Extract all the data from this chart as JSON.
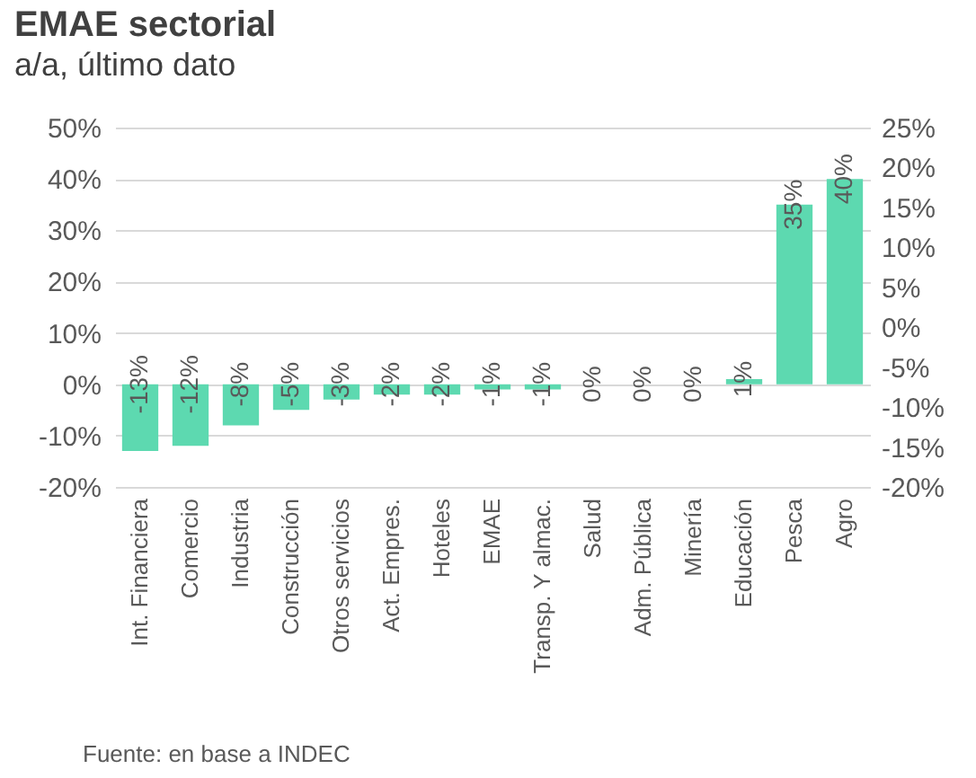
{
  "chart_data": {
    "type": "bar",
    "title": "EMAE sectorial",
    "subtitle": "a/a, último dato",
    "categories": [
      "Int. Financiera",
      "Comercio",
      "Industria",
      "Construcción",
      "Otros servicios",
      "Act. Empres.",
      "Hoteles",
      "EMAE",
      "Transp. Y almac.",
      "Salud",
      "Adm. Pública",
      "Minería",
      "Educación",
      "Pesca",
      "Agro"
    ],
    "values": [
      -13,
      -12,
      -8,
      -5,
      -3,
      -2,
      -2,
      -1,
      -1,
      0,
      0,
      0,
      1,
      35,
      40
    ],
    "value_labels": [
      "-13%",
      "-12%",
      "-8%",
      "-5%",
      "-3%",
      "-2%",
      "-2%",
      "-1%",
      "-1%",
      "0%",
      "0%",
      "0%",
      "1%",
      "35%",
      "40%"
    ],
    "color": "#5dd9b0",
    "ylim": [
      -20,
      50
    ],
    "yticks": [
      {
        "value": -20,
        "label": "-20%"
      },
      {
        "value": -10,
        "label": "-10%"
      },
      {
        "value": 0,
        "label": "0%"
      },
      {
        "value": 10,
        "label": "10%"
      },
      {
        "value": 20,
        "label": "20%"
      },
      {
        "value": 30,
        "label": "30%"
      },
      {
        "value": 40,
        "label": "40%"
      },
      {
        "value": 50,
        "label": "50%"
      }
    ],
    "y2lim": [
      -20,
      25
    ],
    "y2ticks": [
      {
        "value": -20,
        "label": "-20%"
      },
      {
        "value": -15,
        "label": "-15%"
      },
      {
        "value": -10,
        "label": "-10%"
      },
      {
        "value": -5,
        "label": "-5%"
      },
      {
        "value": 0,
        "label": "0%"
      },
      {
        "value": 5,
        "label": "5%"
      },
      {
        "value": 10,
        "label": "10%"
      },
      {
        "value": 15,
        "label": "15%"
      },
      {
        "value": 20,
        "label": "20%"
      },
      {
        "value": 25,
        "label": "25%"
      }
    ],
    "grid": "y",
    "annotations": [
      "Fuente: en base a INDEC"
    ]
  }
}
